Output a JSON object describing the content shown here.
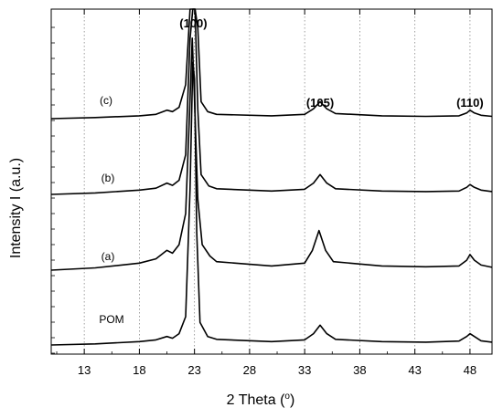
{
  "chart_data": {
    "type": "line",
    "title": "",
    "xlabel": "2 Theta (o)",
    "xlabel_main": "2 Theta (",
    "xlabel_degree": "o",
    "xlabel_close": ")",
    "ylabel": "Intensity I (a.u.)",
    "xlim": [
      10,
      50
    ],
    "y_ticks_labeled": false,
    "x_ticks": [
      13,
      18,
      23,
      28,
      33,
      38,
      43,
      48
    ],
    "x_tick_labels": [
      "13",
      "18",
      "23",
      "28",
      "33",
      "38",
      "43",
      "48"
    ],
    "grid": {
      "vertical": true,
      "horizontal": false,
      "style": "dotted"
    },
    "legend": "none",
    "peak_annotations": [
      {
        "label": "(100)",
        "x": 22.9
      },
      {
        "label": "(105)",
        "x": 34.4
      },
      {
        "label": "(110)",
        "x": 48.0
      }
    ],
    "series": [
      {
        "name": "POM",
        "baseline": 0.0,
        "points": [
          [
            10,
            0.0
          ],
          [
            14,
            0.004
          ],
          [
            18,
            0.012
          ],
          [
            19.5,
            0.018
          ],
          [
            20.5,
            0.03
          ],
          [
            21,
            0.024
          ],
          [
            21.6,
            0.04
          ],
          [
            22.2,
            0.1
          ],
          [
            22.6,
            0.55
          ],
          [
            22.85,
            1.0
          ],
          [
            23.0,
            0.94
          ],
          [
            23.2,
            0.4
          ],
          [
            23.5,
            0.08
          ],
          [
            24.2,
            0.03
          ],
          [
            25,
            0.02
          ],
          [
            30,
            0.012
          ],
          [
            33,
            0.018
          ],
          [
            33.8,
            0.04
          ],
          [
            34.4,
            0.07
          ],
          [
            35.0,
            0.04
          ],
          [
            35.8,
            0.02
          ],
          [
            40,
            0.012
          ],
          [
            44,
            0.01
          ],
          [
            47,
            0.014
          ],
          [
            47.7,
            0.03
          ],
          [
            48.0,
            0.04
          ],
          [
            48.4,
            0.03
          ],
          [
            49,
            0.015
          ],
          [
            50,
            0.01
          ]
        ]
      },
      {
        "name": "(a)",
        "baseline": 1.0,
        "points": [
          [
            10,
            0.0
          ],
          [
            14,
            0.008
          ],
          [
            18,
            0.025
          ],
          [
            19.5,
            0.04
          ],
          [
            20.5,
            0.07
          ],
          [
            21,
            0.06
          ],
          [
            21.6,
            0.09
          ],
          [
            22.2,
            0.2
          ],
          [
            22.55,
            0.55
          ],
          [
            22.8,
            0.82
          ],
          [
            23.0,
            0.6
          ],
          [
            23.3,
            0.25
          ],
          [
            23.7,
            0.09
          ],
          [
            24.4,
            0.05
          ],
          [
            25,
            0.03
          ],
          [
            30,
            0.015
          ],
          [
            33,
            0.025
          ],
          [
            33.7,
            0.07
          ],
          [
            34.3,
            0.14
          ],
          [
            34.9,
            0.07
          ],
          [
            35.6,
            0.03
          ],
          [
            40,
            0.015
          ],
          [
            44,
            0.012
          ],
          [
            47,
            0.015
          ],
          [
            47.7,
            0.035
          ],
          [
            48.0,
            0.055
          ],
          [
            48.4,
            0.035
          ],
          [
            49,
            0.018
          ],
          [
            50,
            0.01
          ]
        ]
      },
      {
        "name": "(b)",
        "baseline": 2.0,
        "points": [
          [
            10,
            0.0
          ],
          [
            14,
            0.005
          ],
          [
            18,
            0.015
          ],
          [
            19.5,
            0.022
          ],
          [
            20.5,
            0.04
          ],
          [
            21,
            0.032
          ],
          [
            21.6,
            0.05
          ],
          [
            22.2,
            0.14
          ],
          [
            22.6,
            0.55
          ],
          [
            22.85,
            0.96
          ],
          [
            23.05,
            0.8
          ],
          [
            23.3,
            0.3
          ],
          [
            23.6,
            0.07
          ],
          [
            24.3,
            0.03
          ],
          [
            25,
            0.02
          ],
          [
            30,
            0.012
          ],
          [
            33,
            0.018
          ],
          [
            33.8,
            0.04
          ],
          [
            34.4,
            0.07
          ],
          [
            35.0,
            0.04
          ],
          [
            35.8,
            0.02
          ],
          [
            40,
            0.012
          ],
          [
            44,
            0.01
          ],
          [
            47,
            0.012
          ],
          [
            47.7,
            0.025
          ],
          [
            48.0,
            0.035
          ],
          [
            48.4,
            0.025
          ],
          [
            49,
            0.015
          ],
          [
            50,
            0.01
          ]
        ]
      },
      {
        "name": "(c)",
        "baseline": 3.0,
        "points": [
          [
            10,
            0.0
          ],
          [
            14,
            0.004
          ],
          [
            18,
            0.01
          ],
          [
            19.5,
            0.015
          ],
          [
            20.5,
            0.03
          ],
          [
            21,
            0.025
          ],
          [
            21.6,
            0.04
          ],
          [
            22.2,
            0.12
          ],
          [
            22.6,
            0.58
          ],
          [
            22.85,
            1.04
          ],
          [
            23.05,
            0.85
          ],
          [
            23.3,
            0.32
          ],
          [
            23.6,
            0.06
          ],
          [
            24.2,
            0.025
          ],
          [
            25,
            0.015
          ],
          [
            30,
            0.01
          ],
          [
            33,
            0.015
          ],
          [
            33.8,
            0.035
          ],
          [
            34.4,
            0.06
          ],
          [
            35.0,
            0.035
          ],
          [
            35.8,
            0.018
          ],
          [
            40,
            0.01
          ],
          [
            44,
            0.008
          ],
          [
            47,
            0.01
          ],
          [
            47.7,
            0.02
          ],
          [
            48.0,
            0.03
          ],
          [
            48.4,
            0.02
          ],
          [
            49,
            0.012
          ],
          [
            50,
            0.008
          ]
        ]
      }
    ]
  }
}
